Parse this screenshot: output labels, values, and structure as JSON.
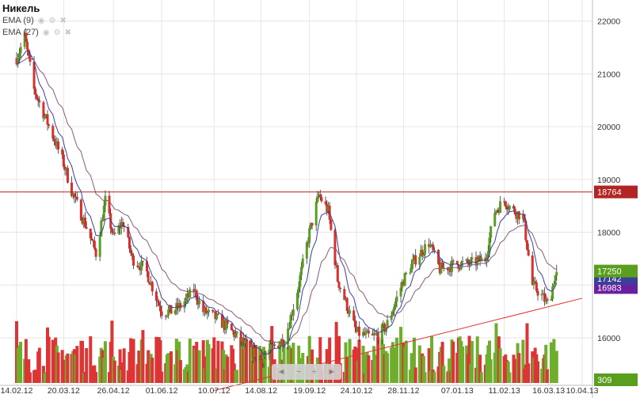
{
  "title": "Никель",
  "indicators": [
    {
      "label": "EMA (9)",
      "icons": [
        "eye-icon",
        "gear-icon",
        "close-icon"
      ]
    },
    {
      "label": "EMA (27)",
      "icons": [
        "eye-icon",
        "gear-icon",
        "close-icon"
      ]
    }
  ],
  "nav_buttons": [
    "◄",
    "−",
    "+",
    "►"
  ],
  "colors": {
    "up": "#5a9e1e",
    "down": "#d9302c",
    "ema9": "#3b3f9a",
    "ema27": "#8a5a7a",
    "hline": "#b32424",
    "trend": "#e03030"
  },
  "chart_data": {
    "type": "candlestick",
    "title": "Никель",
    "x_tick_labels": [
      "14.02.12",
      "20.03.12",
      "26.04.12",
      "01.06.12",
      "10.07.12",
      "14.08.12",
      "19.09.12",
      "24.10.12",
      "28.11.12",
      "07.01.13",
      "11.02.13",
      "16.03.13",
      "10.04.13"
    ],
    "y_tick_labels": [
      "16000",
      "17000",
      "18000",
      "19000",
      "20000",
      "21000",
      "22000"
    ],
    "ylim": [
      15100,
      22400
    ],
    "close_path": [
      [
        "14.02.12",
        21300
      ],
      [
        "20.02.12",
        21700
      ],
      [
        "27.02.12",
        20700
      ],
      [
        "06.03.12",
        20200
      ],
      [
        "14.03.12",
        19700
      ],
      [
        "20.03.12",
        19300
      ],
      [
        "27.03.12",
        18700
      ],
      [
        "06.04.12",
        18100
      ],
      [
        "13.04.12",
        17600
      ],
      [
        "20.04.12",
        18600
      ],
      [
        "26.04.12",
        17900
      ],
      [
        "03.05.12",
        18200
      ],
      [
        "10.05.12",
        17500
      ],
      [
        "20.05.12",
        17300
      ],
      [
        "01.06.12",
        16500
      ],
      [
        "08.06.12",
        16500
      ],
      [
        "15.06.12",
        16600
      ],
      [
        "25.06.12",
        16900
      ],
      [
        "02.07.12",
        16500
      ],
      [
        "10.07.12",
        16400
      ],
      [
        "20.07.12",
        16200
      ],
      [
        "01.08.12",
        15900
      ],
      [
        "14.08.12",
        15600
      ],
      [
        "22.08.12",
        15800
      ],
      [
        "01.09.12",
        16000
      ],
      [
        "10.09.12",
        16900
      ],
      [
        "19.09.12",
        18000
      ],
      [
        "26.09.12",
        18700
      ],
      [
        "03.10.12",
        18400
      ],
      [
        "10.10.12",
        17100
      ],
      [
        "17.10.12",
        16600
      ],
      [
        "24.10.12",
        16100
      ],
      [
        "05.11.12",
        16000
      ],
      [
        "15.11.12",
        16200
      ],
      [
        "28.11.12",
        17100
      ],
      [
        "07.12.12",
        17500
      ],
      [
        "17.12.12",
        17800
      ],
      [
        "25.12.12",
        17300
      ],
      [
        "07.01.13",
        17400
      ],
      [
        "17.01.13",
        17400
      ],
      [
        "28.01.13",
        17500
      ],
      [
        "04.02.13",
        18400
      ],
      [
        "11.02.13",
        18600
      ],
      [
        "18.02.13",
        18400
      ],
      [
        "25.02.13",
        18300
      ],
      [
        "04.03.13",
        17000
      ],
      [
        "11.03.13",
        16800
      ],
      [
        "16.03.13",
        16600
      ],
      [
        "20.03.13",
        17100
      ],
      [
        "22.03.13",
        17250
      ]
    ],
    "horizontal_line": {
      "value": 18764,
      "label": "18764"
    },
    "trendline": {
      "from": [
        "10.07.12",
        15000
      ],
      "to": [
        "10.04.13",
        16750
      ]
    },
    "price_labels": [
      {
        "value": 17250,
        "label": "17250",
        "color": "#5a9e1e"
      },
      {
        "value": 17142,
        "label": "17142",
        "color": "#3b3f9a"
      },
      {
        "value": 16983,
        "label": "16983",
        "color": "#6a1fa0"
      }
    ],
    "ema": [
      {
        "name": "EMA (9)",
        "period": 9
      },
      {
        "name": "EMA (27)",
        "period": 27
      }
    ],
    "volume": {
      "last_label": "309",
      "scale_max": 1000
    }
  }
}
